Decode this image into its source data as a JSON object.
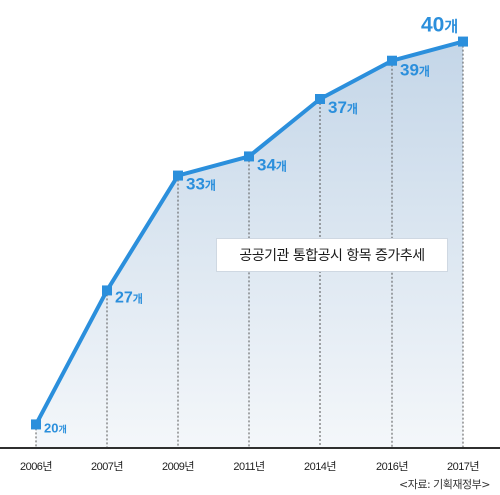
{
  "chart_data": {
    "type": "area",
    "title": "공공기관 통합공시 항목 증가추세",
    "categories": [
      "2006년",
      "2007년",
      "2009년",
      "2011년",
      "2014년",
      "2016년",
      "2017년"
    ],
    "values": [
      20,
      27,
      33,
      34,
      37,
      39,
      40
    ],
    "data_labels": [
      "20개",
      "27개",
      "33개",
      "34개",
      "37개",
      "39개",
      "40개"
    ],
    "unit": "개",
    "ylim": [
      19.5,
      40.5
    ],
    "grid": false,
    "colors": {
      "line": "#2b8fdc",
      "fill_top": "#c4d6e8",
      "fill_bottom": "#f4f7fa",
      "label": "#2b8fdc"
    }
  },
  "source": "<자료: 기획재정부>"
}
